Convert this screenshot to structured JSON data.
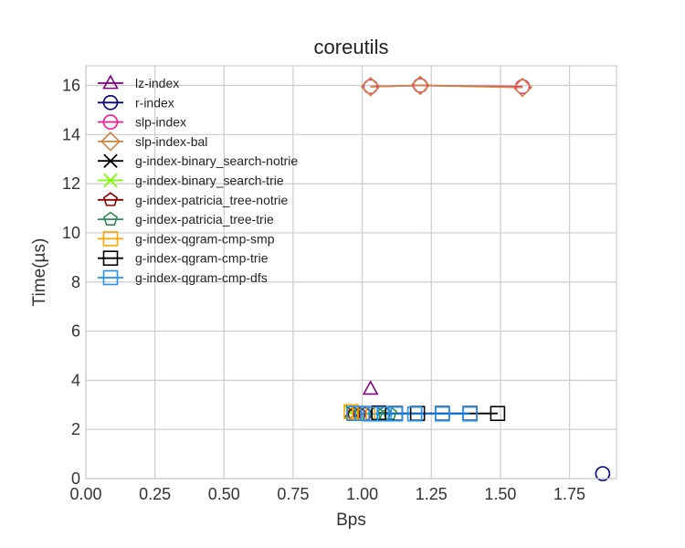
{
  "chart_data": {
    "type": "line",
    "title": "coreutils",
    "xlabel": "Bps",
    "ylabel": "Time(µs)",
    "xlim": [
      0.0,
      1.92
    ],
    "ylim": [
      0,
      16.8
    ],
    "xticks": [
      0.0,
      0.25,
      0.5,
      0.75,
      1.0,
      1.25,
      1.5,
      1.75
    ],
    "xtick_labels": [
      "0.00",
      "0.25",
      "0.50",
      "0.75",
      "1.00",
      "1.25",
      "1.50",
      "1.75"
    ],
    "yticks": [
      0,
      2,
      4,
      6,
      8,
      10,
      12,
      14,
      16
    ],
    "ytick_labels": [
      "0",
      "2",
      "4",
      "6",
      "8",
      "10",
      "12",
      "14",
      "16"
    ],
    "grid": true,
    "legend_position": "top-left",
    "series": [
      {
        "name": "lz-index",
        "color": "#800080",
        "marker": "triangle",
        "x": [
          1.03
        ],
        "y": [
          3.65
        ]
      },
      {
        "name": "r-index",
        "color": "#000080",
        "marker": "circle",
        "x": [
          1.87
        ],
        "y": [
          0.2
        ]
      },
      {
        "name": "slp-index",
        "color": "#ff1493",
        "marker": "circle",
        "x": [
          1.03,
          1.21,
          1.58
        ],
        "y": [
          15.95,
          16.0,
          15.95
        ]
      },
      {
        "name": "slp-index-bal",
        "color": "#cd853f",
        "marker": "diamond",
        "x": [
          1.03,
          1.21,
          1.58
        ],
        "y": [
          15.95,
          16.0,
          15.92
        ]
      },
      {
        "name": "g-index-binary_search-notrie",
        "color": "#000000",
        "marker": "x",
        "x": [
          0.96,
          0.98
        ],
        "y": [
          2.75,
          2.7
        ]
      },
      {
        "name": "g-index-binary_search-trie",
        "color": "#7cfc00",
        "marker": "x",
        "x": [
          0.96,
          0.98
        ],
        "y": [
          2.7,
          2.68
        ]
      },
      {
        "name": "g-index-patricia_tree-notrie",
        "color": "#8b0000",
        "marker": "pentagon",
        "x": [
          0.97,
          0.99,
          1.01
        ],
        "y": [
          2.62,
          2.62,
          2.62
        ]
      },
      {
        "name": "g-index-patricia_tree-trie",
        "color": "#2e8b57",
        "marker": "pentagon",
        "x": [
          1.05,
          1.08,
          1.1
        ],
        "y": [
          2.66,
          2.65,
          2.65
        ]
      },
      {
        "name": "g-index-qgram-cmp-smp",
        "color": "#ffa500",
        "marker": "square",
        "x": [
          0.96,
          0.99,
          1.02
        ],
        "y": [
          2.72,
          2.67,
          2.65
        ]
      },
      {
        "name": "g-index-qgram-cmp-trie",
        "color": "#000000",
        "marker": "square",
        "x": [
          1.06,
          1.12,
          1.2,
          1.29,
          1.39,
          1.49
        ],
        "y": [
          2.67,
          2.65,
          2.65,
          2.65,
          2.65,
          2.65
        ]
      },
      {
        "name": "g-index-qgram-cmp-dfs",
        "color": "#1e90ff",
        "marker": "square",
        "x": [
          0.97,
          1.0,
          1.03,
          1.08,
          1.12,
          1.19,
          1.29,
          1.39
        ],
        "y": [
          2.65,
          2.65,
          2.63,
          2.63,
          2.63,
          2.63,
          2.63,
          2.63
        ]
      }
    ]
  }
}
